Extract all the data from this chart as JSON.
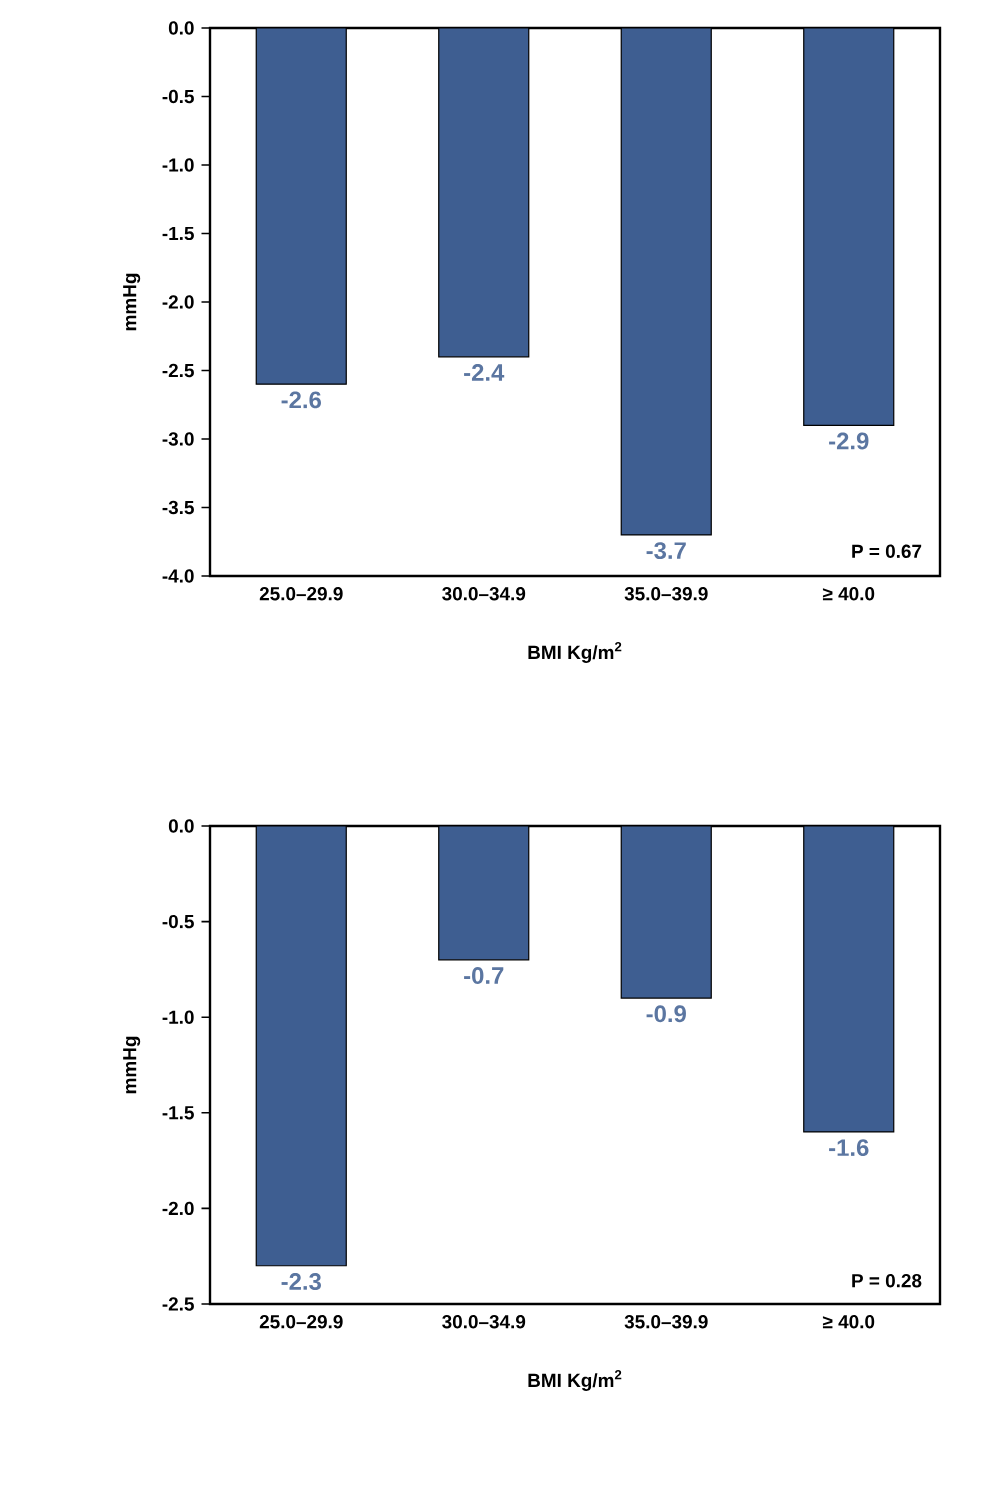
{
  "chart_data": [
    {
      "type": "bar",
      "categories": [
        "25.0–29.9",
        "30.0–34.9",
        "35.0–39.9",
        "≥ 40.0"
      ],
      "values": [
        -2.6,
        -2.4,
        -3.7,
        -2.9
      ],
      "color": "#3e5e91",
      "data_labels": true,
      "xlabel": "BMI Kg/m$^{2}$",
      "ylabel": "mmHg",
      "ylim": [
        -4,
        0
      ],
      "yticks": [
        {
          "value": -4,
          "label": "-4.0"
        },
        {
          "value": -3.5,
          "label": "-3.5"
        },
        {
          "value": -3,
          "label": "-3.0"
        },
        {
          "value": -2.5,
          "label": "-2.5"
        },
        {
          "value": -2,
          "label": "-2.0"
        },
        {
          "value": -1.5,
          "label": "-1.5"
        },
        {
          "value": -1,
          "label": "-1.0"
        },
        {
          "value": -0.5,
          "label": "-0.5"
        },
        {
          "value": 0,
          "label": "0.0"
        }
      ],
      "annotations": [
        "P = 0.67"
      ]
    },
    {
      "type": "bar",
      "categories": [
        "25.0–29.9",
        "30.0–34.9",
        "35.0–39.9",
        "≥ 40.0"
      ],
      "values": [
        -2.3,
        -0.7,
        -0.9,
        -1.6
      ],
      "color": "#3e5e91",
      "data_labels": true,
      "xlabel": "BMI Kg/m$^{2}$",
      "ylabel": "mmHg",
      "ylim": [
        -2.5,
        0
      ],
      "yticks": [
        {
          "value": -2.5,
          "label": "-2.5"
        },
        {
          "value": -2,
          "label": "-2.0"
        },
        {
          "value": -1.5,
          "label": "-1.5"
        },
        {
          "value": -1,
          "label": "-1.0"
        },
        {
          "value": -0.5,
          "label": "-0.5"
        },
        {
          "value": 0,
          "label": "0.0"
        }
      ],
      "annotations": [
        "P = 0.28"
      ]
    }
  ]
}
